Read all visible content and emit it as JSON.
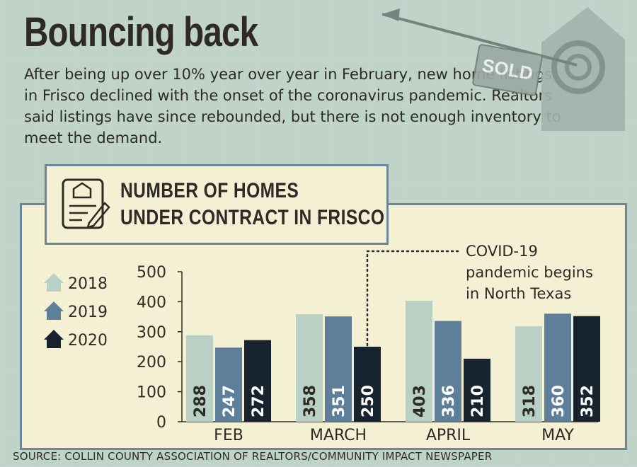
{
  "headline": "Bouncing back",
  "dek": "After being up over 10% year over year in February, new home listings in Frisco declined with the onset of the coronavirus pandemic. Realtors said listings have since rebounded, but there is not enough inventory to meet the demand.",
  "illustration": {
    "sign_text": "SOLD"
  },
  "chart_title_lines": [
    "NUMBER OF HOMES",
    "UNDER CONTRACT IN FRISCO"
  ],
  "source": "SOURCE: COLLIN COUNTY ASSOCIATION OF REALTORS/COMMUNITY IMPACT NEWSPAPER",
  "colors": {
    "2018": "#b9d0c4",
    "2019": "#5e7f99",
    "2020": "#17232e",
    "panel": "#f3f0d4",
    "border": "#6b8799",
    "text": "#2f2a26"
  },
  "chart_data": {
    "type": "bar",
    "title": "NUMBER OF HOMES UNDER CONTRACT IN FRISCO",
    "categories": [
      "FEB",
      "MARCH",
      "APRIL",
      "MAY"
    ],
    "series": [
      {
        "name": "2018",
        "values": [
          288,
          358,
          403,
          318
        ]
      },
      {
        "name": "2019",
        "values": [
          247,
          351,
          336,
          360
        ]
      },
      {
        "name": "2020",
        "values": [
          272,
          250,
          210,
          352
        ]
      }
    ],
    "ylim": [
      0,
      500
    ],
    "yticks": [
      0,
      100,
      200,
      300,
      400,
      500
    ],
    "xlabel": "",
    "ylabel": "",
    "legend_position": "left",
    "grid": false,
    "annotation": {
      "text_lines": [
        "COVID-19",
        "pandemic begins",
        "in North Texas"
      ],
      "category": "MARCH",
      "series": "2020"
    }
  }
}
